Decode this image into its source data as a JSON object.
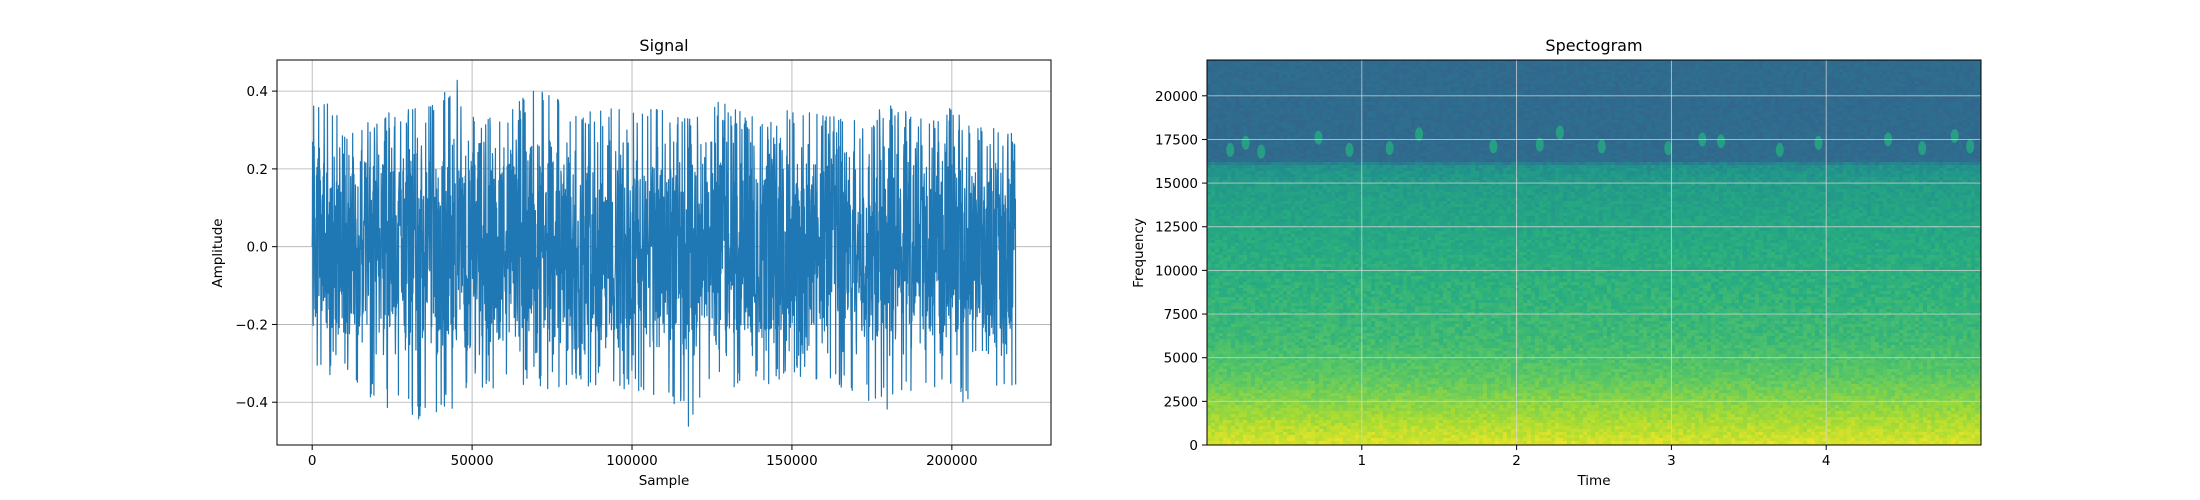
{
  "chart_data": [
    {
      "type": "line",
      "title": "Signal",
      "xlabel": "Sample",
      "ylabel": "Amplitude",
      "xlim": [
        -11000,
        231000
      ],
      "ylim": [
        -0.51,
        0.48
      ],
      "xticks": [
        0,
        50000,
        100000,
        150000,
        200000
      ],
      "xtick_labels": [
        "0",
        "50000",
        "100000",
        "150000",
        "200000"
      ],
      "yticks": [
        -0.4,
        -0.2,
        0.0,
        0.2,
        0.4
      ],
      "ytick_labels": [
        "−0.4",
        "−0.2",
        "0.0",
        "0.2",
        "0.4"
      ],
      "grid": true,
      "color": "#1f77b4",
      "series": [
        {
          "x_start": 0,
          "x_end": 220000,
          "envelope": {
            "x": [
              0,
              10000,
              20000,
              30000,
              40000,
              45000,
              50000,
              60000,
              70000,
              80000,
              90000,
              100000,
              110000,
              118000,
              125000,
              130000,
              140000,
              150000,
              160000,
              170000,
              180000,
              190000,
              200000,
              210000,
              220000
            ],
            "upper": [
              0.42,
              0.32,
              0.34,
              0.36,
              0.38,
              0.44,
              0.35,
              0.35,
              0.41,
              0.37,
              0.36,
              0.35,
              0.36,
              0.34,
              0.4,
              0.36,
              0.33,
              0.36,
              0.34,
              0.33,
              0.37,
              0.33,
              0.36,
              0.31,
              0.3
            ],
            "lower": [
              -0.33,
              -0.35,
              -0.4,
              -0.45,
              -0.44,
              -0.41,
              -0.36,
              -0.38,
              -0.36,
              -0.38,
              -0.36,
              -0.37,
              -0.4,
              -0.47,
              -0.38,
              -0.37,
              -0.36,
              -0.35,
              -0.37,
              -0.38,
              -0.42,
              -0.36,
              -0.38,
              -0.44,
              -0.36
            ]
          }
        }
      ]
    },
    {
      "type": "heatmap",
      "title": "Spectogram",
      "xlabel": "Time",
      "ylabel": "Frequency",
      "xlim": [
        0,
        5
      ],
      "ylim": [
        0,
        22050
      ],
      "xticks": [
        1,
        2,
        3,
        4
      ],
      "xtick_labels": [
        "1",
        "2",
        "3",
        "4"
      ],
      "yticks": [
        0,
        2500,
        5000,
        7500,
        10000,
        12500,
        15000,
        17500,
        20000
      ],
      "ytick_labels": [
        "0",
        "2500",
        "5000",
        "7500",
        "10000",
        "12500",
        "15000",
        "17500",
        "20000"
      ],
      "grid": true,
      "colormap": "viridis",
      "cutoff_frequency": 16200,
      "colors": {
        "low_band": "#d8e219",
        "mid_band": "#4ec36b",
        "upper_band": "#29af7f",
        "above_cutoff": "#2d6e8e"
      },
      "intensity_profile": {
        "frequency": [
          0,
          1000,
          2500,
          4000,
          6000,
          9000,
          12000,
          15000,
          16000,
          16300,
          22050
        ],
        "level": [
          0.95,
          0.9,
          0.82,
          0.74,
          0.68,
          0.64,
          0.6,
          0.55,
          0.5,
          0.35,
          0.35
        ]
      },
      "blips": [
        {
          "t": 0.15,
          "f": 16900
        },
        {
          "t": 0.25,
          "f": 17300
        },
        {
          "t": 0.35,
          "f": 16800
        },
        {
          "t": 0.72,
          "f": 17600
        },
        {
          "t": 0.92,
          "f": 16900
        },
        {
          "t": 1.18,
          "f": 17000
        },
        {
          "t": 1.37,
          "f": 17800
        },
        {
          "t": 1.85,
          "f": 17100
        },
        {
          "t": 2.15,
          "f": 17200
        },
        {
          "t": 2.28,
          "f": 17900
        },
        {
          "t": 2.55,
          "f": 17100
        },
        {
          "t": 2.98,
          "f": 17000
        },
        {
          "t": 3.2,
          "f": 17500
        },
        {
          "t": 3.32,
          "f": 17400
        },
        {
          "t": 3.7,
          "f": 16900
        },
        {
          "t": 3.95,
          "f": 17300
        },
        {
          "t": 4.4,
          "f": 17500
        },
        {
          "t": 4.62,
          "f": 17000
        },
        {
          "t": 4.83,
          "f": 17700
        },
        {
          "t": 4.93,
          "f": 17100
        }
      ]
    }
  ]
}
